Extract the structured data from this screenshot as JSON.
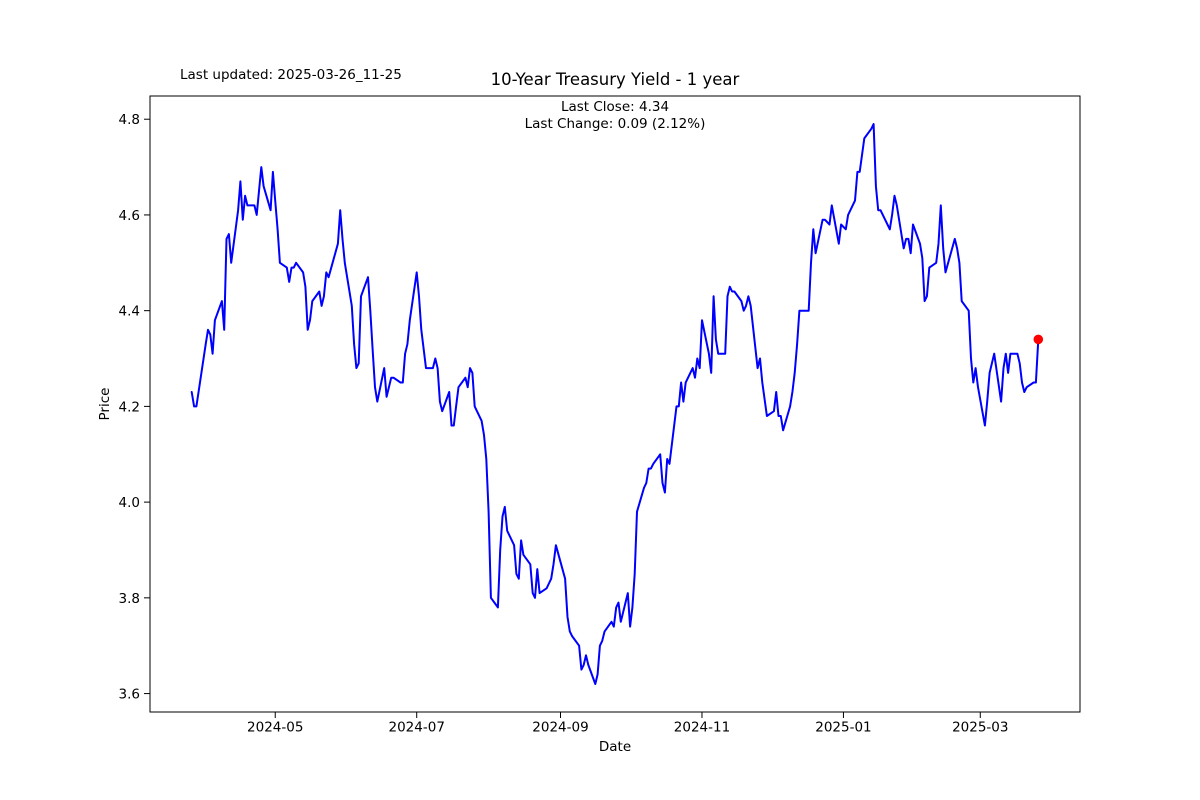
{
  "header": {
    "last_updated": "Last updated: 2025-03-26_11-25",
    "title": "10-Year Treasury Yield - 1 year"
  },
  "annotations": {
    "last_close": "Last Close: 4.34",
    "last_change": "Last Change: 0.09 (2.12%)"
  },
  "chart_data": {
    "type": "line",
    "title": "10-Year Treasury Yield - 1 year",
    "xlabel": "Date",
    "ylabel": "Price",
    "last_close": 4.34,
    "last_change": 0.09,
    "last_change_pct": 2.12,
    "line_color": "#0000ff",
    "marker_color": "#ff0000",
    "background": "#ffffff",
    "grid": false,
    "legend": false,
    "xlim": [
      "2024-03-08",
      "2025-04-13"
    ],
    "ylim": [
      3.5615,
      4.8485
    ],
    "y_ticks": [
      3.6,
      3.8,
      4.0,
      4.2,
      4.4,
      4.6,
      4.8
    ],
    "y_tick_labels": [
      "3.6",
      "3.8",
      "4.0",
      "4.2",
      "4.4",
      "4.6",
      "4.8"
    ],
    "x_ticks": [
      "2024-05-01",
      "2024-07-01",
      "2024-09-01",
      "2024-11-01",
      "2025-01-01",
      "2025-03-01"
    ],
    "x_tick_labels": [
      "2024-05",
      "2024-07",
      "2024-09",
      "2024-11",
      "2025-01",
      "2025-03"
    ],
    "last_point": [
      "2025-03-26",
      4.34
    ],
    "series": [
      {
        "name": "10-Year Treasury Yield",
        "points": [
          [
            "2024-03-26",
            4.23
          ],
          [
            "2024-03-27",
            4.2
          ],
          [
            "2024-03-28",
            4.2
          ],
          [
            "2024-04-01",
            4.33
          ],
          [
            "2024-04-02",
            4.36
          ],
          [
            "2024-04-03",
            4.35
          ],
          [
            "2024-04-04",
            4.31
          ],
          [
            "2024-04-05",
            4.38
          ],
          [
            "2024-04-08",
            4.42
          ],
          [
            "2024-04-09",
            4.36
          ],
          [
            "2024-04-10",
            4.55
          ],
          [
            "2024-04-11",
            4.56
          ],
          [
            "2024-04-12",
            4.5
          ],
          [
            "2024-04-15",
            4.61
          ],
          [
            "2024-04-16",
            4.67
          ],
          [
            "2024-04-17",
            4.59
          ],
          [
            "2024-04-18",
            4.64
          ],
          [
            "2024-04-19",
            4.62
          ],
          [
            "2024-04-22",
            4.62
          ],
          [
            "2024-04-23",
            4.6
          ],
          [
            "2024-04-24",
            4.65
          ],
          [
            "2024-04-25",
            4.7
          ],
          [
            "2024-04-26",
            4.66
          ],
          [
            "2024-04-29",
            4.61
          ],
          [
            "2024-04-30",
            4.69
          ],
          [
            "2024-05-01",
            4.63
          ],
          [
            "2024-05-02",
            4.57
          ],
          [
            "2024-05-03",
            4.5
          ],
          [
            "2024-05-06",
            4.49
          ],
          [
            "2024-05-07",
            4.46
          ],
          [
            "2024-05-08",
            4.49
          ],
          [
            "2024-05-09",
            4.49
          ],
          [
            "2024-05-10",
            4.5
          ],
          [
            "2024-05-13",
            4.48
          ],
          [
            "2024-05-14",
            4.45
          ],
          [
            "2024-05-15",
            4.36
          ],
          [
            "2024-05-16",
            4.38
          ],
          [
            "2024-05-17",
            4.42
          ],
          [
            "2024-05-20",
            4.44
          ],
          [
            "2024-05-21",
            4.41
          ],
          [
            "2024-05-22",
            4.43
          ],
          [
            "2024-05-23",
            4.48
          ],
          [
            "2024-05-24",
            4.47
          ],
          [
            "2024-05-28",
            4.54
          ],
          [
            "2024-05-29",
            4.61
          ],
          [
            "2024-05-30",
            4.55
          ],
          [
            "2024-05-31",
            4.5
          ],
          [
            "2024-06-03",
            4.41
          ],
          [
            "2024-06-04",
            4.33
          ],
          [
            "2024-06-05",
            4.28
          ],
          [
            "2024-06-06",
            4.29
          ],
          [
            "2024-06-07",
            4.43
          ],
          [
            "2024-06-10",
            4.47
          ],
          [
            "2024-06-11",
            4.4
          ],
          [
            "2024-06-12",
            4.32
          ],
          [
            "2024-06-13",
            4.24
          ],
          [
            "2024-06-14",
            4.21
          ],
          [
            "2024-06-17",
            4.28
          ],
          [
            "2024-06-18",
            4.22
          ],
          [
            "2024-06-20",
            4.26
          ],
          [
            "2024-06-21",
            4.26
          ],
          [
            "2024-06-24",
            4.25
          ],
          [
            "2024-06-25",
            4.25
          ],
          [
            "2024-06-26",
            4.31
          ],
          [
            "2024-06-27",
            4.33
          ],
          [
            "2024-06-28",
            4.38
          ],
          [
            "2024-07-01",
            4.48
          ],
          [
            "2024-07-02",
            4.43
          ],
          [
            "2024-07-03",
            4.36
          ],
          [
            "2024-07-05",
            4.28
          ],
          [
            "2024-07-08",
            4.28
          ],
          [
            "2024-07-09",
            4.3
          ],
          [
            "2024-07-10",
            4.28
          ],
          [
            "2024-07-11",
            4.21
          ],
          [
            "2024-07-12",
            4.19
          ],
          [
            "2024-07-15",
            4.23
          ],
          [
            "2024-07-16",
            4.16
          ],
          [
            "2024-07-17",
            4.16
          ],
          [
            "2024-07-18",
            4.2
          ],
          [
            "2024-07-19",
            4.24
          ],
          [
            "2024-07-22",
            4.26
          ],
          [
            "2024-07-23",
            4.24
          ],
          [
            "2024-07-24",
            4.28
          ],
          [
            "2024-07-25",
            4.27
          ],
          [
            "2024-07-26",
            4.2
          ],
          [
            "2024-07-29",
            4.17
          ],
          [
            "2024-07-30",
            4.14
          ],
          [
            "2024-07-31",
            4.09
          ],
          [
            "2024-08-01",
            3.98
          ],
          [
            "2024-08-02",
            3.8
          ],
          [
            "2024-08-05",
            3.78
          ],
          [
            "2024-08-06",
            3.9
          ],
          [
            "2024-08-07",
            3.97
          ],
          [
            "2024-08-08",
            3.99
          ],
          [
            "2024-08-09",
            3.94
          ],
          [
            "2024-08-12",
            3.91
          ],
          [
            "2024-08-13",
            3.85
          ],
          [
            "2024-08-14",
            3.84
          ],
          [
            "2024-08-15",
            3.92
          ],
          [
            "2024-08-16",
            3.89
          ],
          [
            "2024-08-19",
            3.87
          ],
          [
            "2024-08-20",
            3.81
          ],
          [
            "2024-08-21",
            3.8
          ],
          [
            "2024-08-22",
            3.86
          ],
          [
            "2024-08-23",
            3.81
          ],
          [
            "2024-08-26",
            3.82
          ],
          [
            "2024-08-27",
            3.83
          ],
          [
            "2024-08-28",
            3.84
          ],
          [
            "2024-08-29",
            3.87
          ],
          [
            "2024-08-30",
            3.91
          ],
          [
            "2024-09-03",
            3.84
          ],
          [
            "2024-09-04",
            3.76
          ],
          [
            "2024-09-05",
            3.73
          ],
          [
            "2024-09-06",
            3.72
          ],
          [
            "2024-09-09",
            3.7
          ],
          [
            "2024-09-10",
            3.65
          ],
          [
            "2024-09-11",
            3.66
          ],
          [
            "2024-09-12",
            3.68
          ],
          [
            "2024-09-13",
            3.66
          ],
          [
            "2024-09-16",
            3.62
          ],
          [
            "2024-09-17",
            3.64
          ],
          [
            "2024-09-18",
            3.7
          ],
          [
            "2024-09-19",
            3.71
          ],
          [
            "2024-09-20",
            3.73
          ],
          [
            "2024-09-23",
            3.75
          ],
          [
            "2024-09-24",
            3.74
          ],
          [
            "2024-09-25",
            3.78
          ],
          [
            "2024-09-26",
            3.79
          ],
          [
            "2024-09-27",
            3.75
          ],
          [
            "2024-09-30",
            3.81
          ],
          [
            "2024-10-01",
            3.74
          ],
          [
            "2024-10-02",
            3.78
          ],
          [
            "2024-10-03",
            3.85
          ],
          [
            "2024-10-04",
            3.98
          ],
          [
            "2024-10-07",
            4.03
          ],
          [
            "2024-10-08",
            4.04
          ],
          [
            "2024-10-09",
            4.07
          ],
          [
            "2024-10-10",
            4.07
          ],
          [
            "2024-10-11",
            4.08
          ],
          [
            "2024-10-14",
            4.1
          ],
          [
            "2024-10-15",
            4.04
          ],
          [
            "2024-10-16",
            4.02
          ],
          [
            "2024-10-17",
            4.09
          ],
          [
            "2024-10-18",
            4.08
          ],
          [
            "2024-10-21",
            4.2
          ],
          [
            "2024-10-22",
            4.2
          ],
          [
            "2024-10-23",
            4.25
          ],
          [
            "2024-10-24",
            4.21
          ],
          [
            "2024-10-25",
            4.25
          ],
          [
            "2024-10-28",
            4.28
          ],
          [
            "2024-10-29",
            4.26
          ],
          [
            "2024-10-30",
            4.3
          ],
          [
            "2024-10-31",
            4.28
          ],
          [
            "2024-11-01",
            4.38
          ],
          [
            "2024-11-04",
            4.31
          ],
          [
            "2024-11-05",
            4.27
          ],
          [
            "2024-11-06",
            4.43
          ],
          [
            "2024-11-07",
            4.34
          ],
          [
            "2024-11-08",
            4.31
          ],
          [
            "2024-11-11",
            4.31
          ],
          [
            "2024-11-12",
            4.43
          ],
          [
            "2024-11-13",
            4.45
          ],
          [
            "2024-11-14",
            4.44
          ],
          [
            "2024-11-15",
            4.44
          ],
          [
            "2024-11-18",
            4.42
          ],
          [
            "2024-11-19",
            4.4
          ],
          [
            "2024-11-20",
            4.41
          ],
          [
            "2024-11-21",
            4.43
          ],
          [
            "2024-11-22",
            4.41
          ],
          [
            "2024-11-25",
            4.28
          ],
          [
            "2024-11-26",
            4.3
          ],
          [
            "2024-11-27",
            4.25
          ],
          [
            "2024-11-29",
            4.18
          ],
          [
            "2024-12-02",
            4.19
          ],
          [
            "2024-12-03",
            4.23
          ],
          [
            "2024-12-04",
            4.18
          ],
          [
            "2024-12-05",
            4.18
          ],
          [
            "2024-12-06",
            4.15
          ],
          [
            "2024-12-09",
            4.2
          ],
          [
            "2024-12-10",
            4.23
          ],
          [
            "2024-12-11",
            4.27
          ],
          [
            "2024-12-12",
            4.33
          ],
          [
            "2024-12-13",
            4.4
          ],
          [
            "2024-12-16",
            4.4
          ],
          [
            "2024-12-17",
            4.4
          ],
          [
            "2024-12-18",
            4.5
          ],
          [
            "2024-12-19",
            4.57
          ],
          [
            "2024-12-20",
            4.52
          ],
          [
            "2024-12-23",
            4.59
          ],
          [
            "2024-12-24",
            4.59
          ],
          [
            "2024-12-26",
            4.58
          ],
          [
            "2024-12-27",
            4.62
          ],
          [
            "2024-12-30",
            4.54
          ],
          [
            "2024-12-31",
            4.58
          ],
          [
            "2025-01-02",
            4.57
          ],
          [
            "2025-01-03",
            4.6
          ],
          [
            "2025-01-06",
            4.63
          ],
          [
            "2025-01-07",
            4.69
          ],
          [
            "2025-01-08",
            4.69
          ],
          [
            "2025-01-10",
            4.76
          ],
          [
            "2025-01-13",
            4.78
          ],
          [
            "2025-01-14",
            4.79
          ],
          [
            "2025-01-15",
            4.66
          ],
          [
            "2025-01-16",
            4.61
          ],
          [
            "2025-01-17",
            4.61
          ],
          [
            "2025-01-21",
            4.57
          ],
          [
            "2025-01-22",
            4.6
          ],
          [
            "2025-01-23",
            4.64
          ],
          [
            "2025-01-24",
            4.62
          ],
          [
            "2025-01-27",
            4.53
          ],
          [
            "2025-01-28",
            4.55
          ],
          [
            "2025-01-29",
            4.55
          ],
          [
            "2025-01-30",
            4.52
          ],
          [
            "2025-01-31",
            4.58
          ],
          [
            "2025-02-03",
            4.54
          ],
          [
            "2025-02-04",
            4.51
          ],
          [
            "2025-02-05",
            4.42
          ],
          [
            "2025-02-06",
            4.43
          ],
          [
            "2025-02-07",
            4.49
          ],
          [
            "2025-02-10",
            4.5
          ],
          [
            "2025-02-11",
            4.54
          ],
          [
            "2025-02-12",
            4.62
          ],
          [
            "2025-02-13",
            4.53
          ],
          [
            "2025-02-14",
            4.48
          ],
          [
            "2025-02-18",
            4.55
          ],
          [
            "2025-02-19",
            4.53
          ],
          [
            "2025-02-20",
            4.5
          ],
          [
            "2025-02-21",
            4.42
          ],
          [
            "2025-02-24",
            4.4
          ],
          [
            "2025-02-25",
            4.3
          ],
          [
            "2025-02-26",
            4.25
          ],
          [
            "2025-02-27",
            4.28
          ],
          [
            "2025-02-28",
            4.24
          ],
          [
            "2025-03-03",
            4.16
          ],
          [
            "2025-03-04",
            4.21
          ],
          [
            "2025-03-05",
            4.27
          ],
          [
            "2025-03-06",
            4.29
          ],
          [
            "2025-03-07",
            4.31
          ],
          [
            "2025-03-10",
            4.21
          ],
          [
            "2025-03-11",
            4.28
          ],
          [
            "2025-03-12",
            4.31
          ],
          [
            "2025-03-13",
            4.27
          ],
          [
            "2025-03-14",
            4.31
          ],
          [
            "2025-03-17",
            4.31
          ],
          [
            "2025-03-18",
            4.29
          ],
          [
            "2025-03-19",
            4.25
          ],
          [
            "2025-03-20",
            4.23
          ],
          [
            "2025-03-21",
            4.24
          ],
          [
            "2025-03-24",
            4.25
          ],
          [
            "2025-03-25",
            4.25
          ],
          [
            "2025-03-26",
            4.34
          ]
        ]
      }
    ]
  }
}
